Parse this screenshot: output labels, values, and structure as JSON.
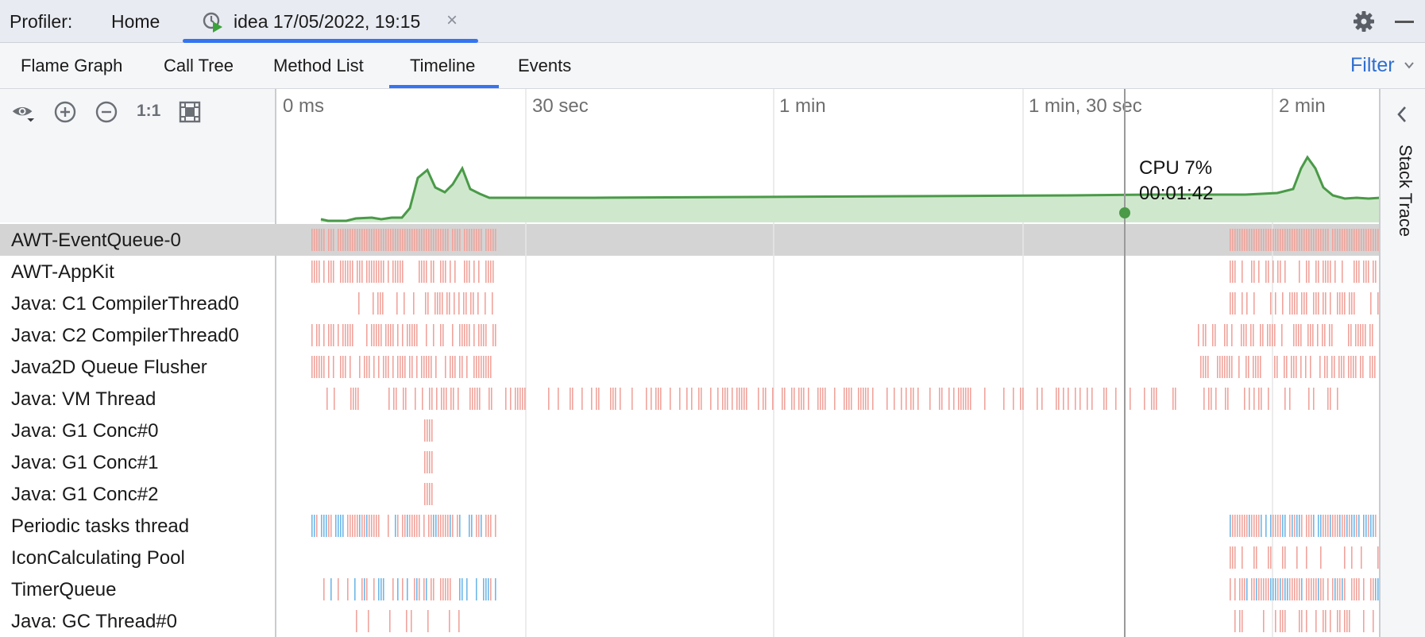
{
  "header": {
    "profiler_label": "Profiler:",
    "home_tab": "Home",
    "active_tab": "idea 17/05/2022, 19:15",
    "close_symbol": "×"
  },
  "view_tabs": {
    "tabs": [
      "Flame Graph",
      "Call Tree",
      "Method List",
      "Timeline",
      "Events"
    ],
    "selected": "Timeline",
    "filter_label": "Filter"
  },
  "toolbar": {
    "icons": [
      "eye-icon",
      "zoom-in-icon",
      "zoom-out-icon",
      "actual-size-icon",
      "fit-screen-icon"
    ],
    "actual_size_label": "1:1"
  },
  "timeline": {
    "ticks": [
      "0 ms",
      "30 sec",
      "1 min",
      "1 min, 30 sec",
      "2 min"
    ],
    "tooltip": {
      "cpu": "CPU 7%",
      "time": "00:01:42"
    }
  },
  "threads": [
    "AWT-EventQueue-0",
    "AWT-AppKit",
    "Java: C1 CompilerThread0",
    "Java: C2 CompilerThread0",
    "Java2D Queue Flusher",
    "Java: VM Thread",
    "Java: G1 Conc#0",
    "Java: G1 Conc#1",
    "Java: G1 Conc#2",
    "Periodic tasks thread",
    "IconCalculating Pool",
    "TimerQueue",
    "Java: GC Thread#0"
  ],
  "selected_thread": "AWT-EventQueue-0",
  "right_panel": {
    "label": "Stack Trace"
  },
  "colors": {
    "accent": "#3574f0",
    "cpu_line": "#4a9a48",
    "cpu_fill": "#cfe8cd",
    "activity": "#f0a49c",
    "activity_alt": "#6fb8e8"
  }
}
